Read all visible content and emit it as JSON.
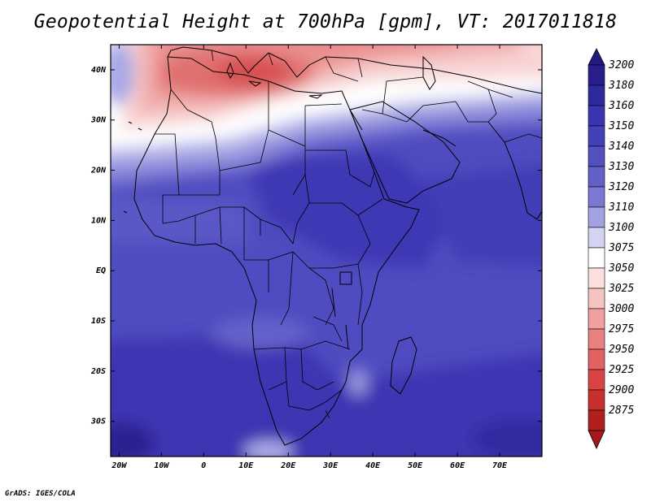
{
  "title": "Geopotential Height at 700hPa [gpm], VT: 2017011818",
  "credit": "GrADS: IGES/COLA",
  "map": {
    "projection": "lat-lon",
    "lon_range": [
      -22,
      80
    ],
    "lat_range": [
      -37,
      45
    ],
    "lon_ticks": [
      {
        "value": -20,
        "label": "20W"
      },
      {
        "value": -10,
        "label": "10W"
      },
      {
        "value": 0,
        "label": "0"
      },
      {
        "value": 10,
        "label": "10E"
      },
      {
        "value": 20,
        "label": "20E"
      },
      {
        "value": 30,
        "label": "30E"
      },
      {
        "value": 40,
        "label": "40E"
      },
      {
        "value": 50,
        "label": "50E"
      },
      {
        "value": 60,
        "label": "60E"
      },
      {
        "value": 70,
        "label": "70E"
      }
    ],
    "lat_ticks": [
      {
        "value": 40,
        "label": "40N"
      },
      {
        "value": 30,
        "label": "30N"
      },
      {
        "value": 20,
        "label": "20N"
      },
      {
        "value": 10,
        "label": "10N"
      },
      {
        "value": 0,
        "label": "EQ"
      },
      {
        "value": -10,
        "label": "10S"
      },
      {
        "value": -20,
        "label": "20S"
      },
      {
        "value": -30,
        "label": "30S"
      }
    ]
  },
  "colorbar": {
    "levels": [
      {
        "label": "3200",
        "color": "#2a1e8c"
      },
      {
        "label": "3180",
        "color": "#2e2a9e"
      },
      {
        "label": "3160",
        "color": "#3a34b0"
      },
      {
        "label": "3150",
        "color": "#4440b8"
      },
      {
        "label": "3140",
        "color": "#5350c0"
      },
      {
        "label": "3130",
        "color": "#6360c8"
      },
      {
        "label": "3120",
        "color": "#7a78d2"
      },
      {
        "label": "3110",
        "color": "#a2a2e2"
      },
      {
        "label": "3100",
        "color": "#d4d4f2"
      },
      {
        "label": "3075",
        "color": "#ffffff"
      },
      {
        "label": "3050",
        "color": "#fbe0e0"
      },
      {
        "label": "3025",
        "color": "#f6c2c2"
      },
      {
        "label": "3000",
        "color": "#f0a0a0"
      },
      {
        "label": "2975",
        "color": "#e88080"
      },
      {
        "label": "2950",
        "color": "#e06262"
      },
      {
        "label": "2925",
        "color": "#d84444"
      },
      {
        "label": "2900",
        "color": "#c83030"
      },
      {
        "label": "2875",
        "color": "#b02020"
      }
    ],
    "top_arrow_color": "#221a80",
    "bottom_arrow_color": "#a81818"
  }
}
